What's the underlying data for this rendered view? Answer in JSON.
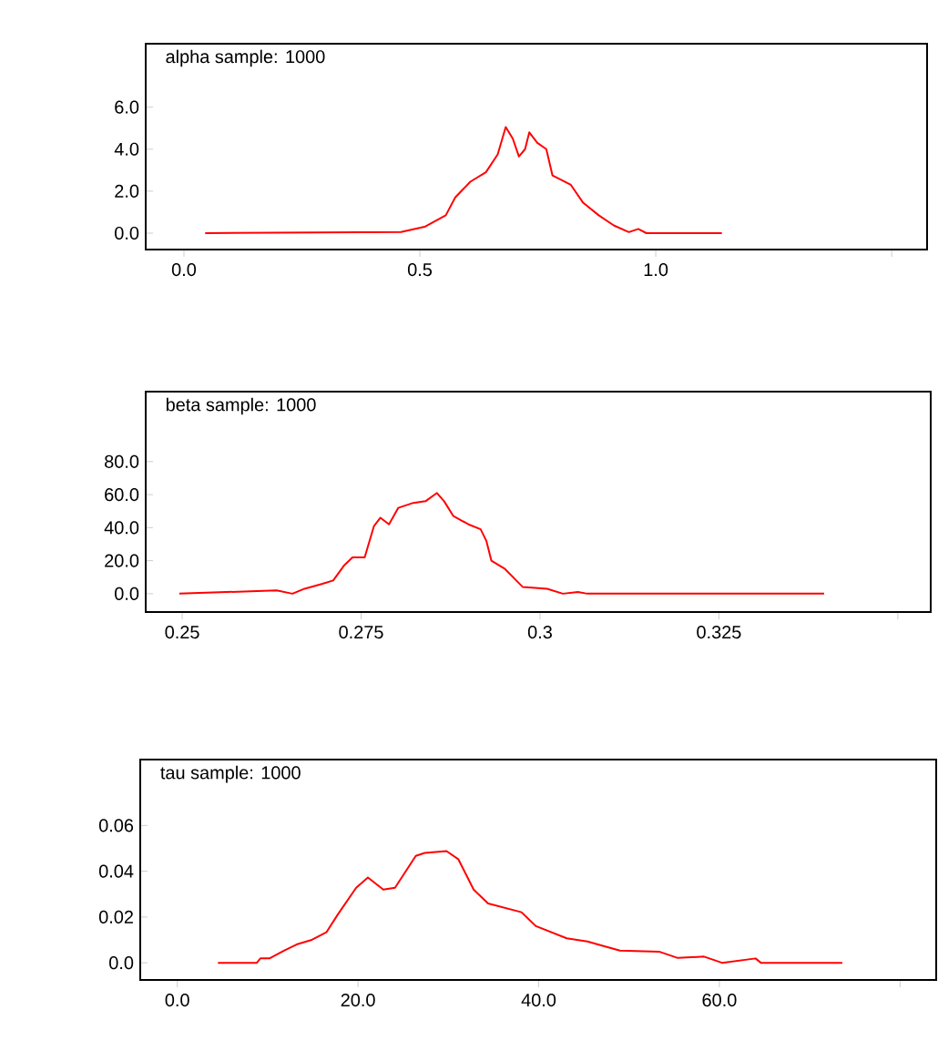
{
  "chart_data": [
    {
      "type": "line",
      "title": "alpha sample: 1000",
      "color": "#ff0000",
      "grid": false,
      "xlim": [
        -0.081,
        1.575
      ],
      "ylim": [
        -0.78,
        9.02
      ],
      "xticks": [
        {
          "value": 0.0,
          "label": "0.0"
        },
        0.5,
        {
          "value": 1.0,
          "label": "1.0"
        },
        {
          "value": 1.5,
          "label": null
        }
      ],
      "yticks": [
        {
          "value": 0.0,
          "label": "0.0"
        },
        {
          "value": 2.0,
          "label": "2.0"
        },
        {
          "value": 4.0,
          "label": "4.0"
        },
        {
          "value": 6.0,
          "label": "6.0"
        }
      ],
      "x": [
        0.045,
        0.46,
        0.51,
        0.555,
        0.575,
        0.607,
        0.64,
        0.665,
        0.682,
        0.697,
        0.71,
        0.723,
        0.732,
        0.749,
        0.768,
        0.781,
        0.82,
        0.846,
        0.879,
        0.911,
        0.943,
        0.963,
        0.98,
        1.14
      ],
      "values": [
        0,
        0.05,
        0.3,
        0.85,
        1.7,
        2.45,
        2.9,
        3.75,
        5.05,
        4.5,
        3.65,
        4.0,
        4.8,
        4.3,
        4.0,
        2.75,
        2.3,
        1.45,
        0.85,
        0.37,
        0.05,
        0.2,
        0,
        0
      ]
    },
    {
      "type": "line",
      "title": "beta sample: 1000",
      "color": "#ff0000",
      "grid": false,
      "xlim": [
        0.2449,
        0.3546
      ],
      "ylim": [
        -11.1,
        122.4
      ],
      "xticks": [
        0.25,
        0.275,
        0.3,
        0.325,
        {
          "value": 0.35,
          "label": null
        }
      ],
      "yticks": [
        {
          "value": 0.0,
          "label": "0.0"
        },
        {
          "value": 20.0,
          "label": "20.0"
        },
        {
          "value": 40.0,
          "label": "40.0"
        },
        {
          "value": 60.0,
          "label": "60.0"
        },
        {
          "value": 80.0,
          "label": "80.0"
        }
      ],
      "x": [
        0.2496,
        0.2632,
        0.2654,
        0.2671,
        0.2696,
        0.2711,
        0.2726,
        0.2738,
        0.2755,
        0.2768,
        0.2777,
        0.2789,
        0.2802,
        0.2823,
        0.284,
        0.2856,
        0.2866,
        0.2879,
        0.29,
        0.2917,
        0.2925,
        0.2932,
        0.2951,
        0.2976,
        0.301,
        0.3032,
        0.3053,
        0.3066,
        0.3397
      ],
      "values": [
        0,
        2,
        0,
        3,
        6,
        8,
        17,
        22,
        22,
        41,
        46,
        42,
        52,
        55,
        56,
        61,
        56,
        47,
        42,
        39,
        32,
        20,
        15,
        4,
        3,
        0,
        1,
        0,
        0
      ]
    },
    {
      "type": "line",
      "title": "tau sample: 1000",
      "color": "#ff0000",
      "grid": false,
      "xlim": [
        -4.1,
        84
      ],
      "ylim": [
        -0.0075,
        0.0888
      ],
      "xticks": [
        {
          "value": 0.0,
          "label": "0.0"
        },
        {
          "value": 20.0,
          "label": "20.0"
        },
        {
          "value": 40.0,
          "label": "40.0"
        },
        {
          "value": 60.0,
          "label": "60.0"
        },
        {
          "value": 80.0,
          "label": null
        }
      ],
      "yticks": [
        {
          "value": 0.0,
          "label": "0.0"
        },
        0.02,
        0.04,
        0.06
      ],
      "x": [
        4.5,
        8.8,
        9.2,
        10.2,
        11.8,
        13.2,
        14.8,
        16.5,
        17.8,
        19.8,
        21.1,
        22.8,
        24.1,
        26.4,
        27.4,
        29.8,
        31.1,
        32.8,
        34.4,
        38.1,
        39.7,
        43.1,
        45.4,
        47.0,
        49.0,
        53.4,
        55.4,
        58.3,
        60.3,
        64.0,
        64.6,
        73.6
      ],
      "values": [
        0,
        0,
        0.0019,
        0.0019,
        0.0053,
        0.008,
        0.0099,
        0.0133,
        0.0213,
        0.0328,
        0.0373,
        0.032,
        0.0328,
        0.0467,
        0.048,
        0.0488,
        0.0453,
        0.032,
        0.0259,
        0.0221,
        0.016,
        0.0107,
        0.0093,
        0.0075,
        0.0053,
        0.0048,
        0.0021,
        0.0027,
        0,
        0.0019,
        0,
        0
      ]
    }
  ]
}
